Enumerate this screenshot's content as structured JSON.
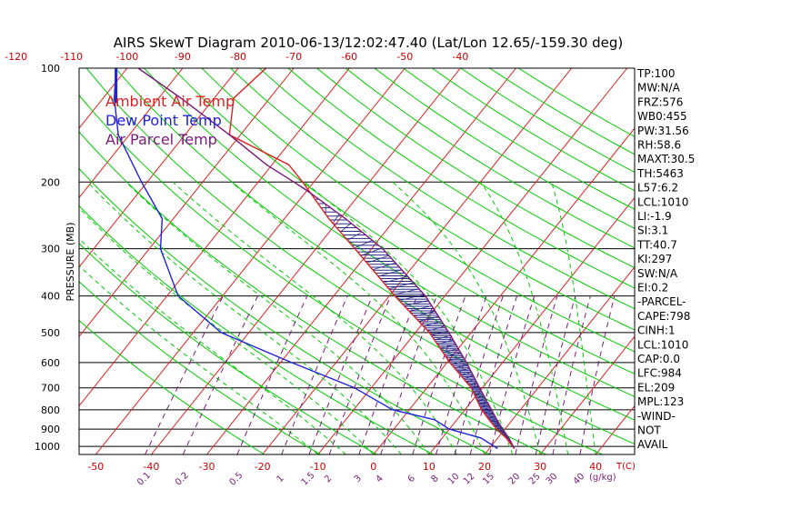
{
  "chart_data": {
    "type": "line",
    "title": "AIRS SkewT Diagram 2010-06-13/12:02:47.40 (Lat/Lon 12.65/-159.30 deg)",
    "ylabel": "PRESSURE (MB)",
    "x_units_label": "T(C)",
    "mixing_ratio_units_label": "(g/kg)",
    "pressure_levels": [
      1000,
      900,
      800,
      700,
      600,
      500,
      400,
      300,
      200,
      100
    ],
    "bottom_temp_ticks": [
      -50,
      -40,
      -30,
      -20,
      -10,
      0,
      10,
      20,
      30,
      40
    ],
    "top_temp_ticks": [
      -120,
      -110,
      -100,
      -90,
      -80,
      -70,
      -60,
      -50,
      -40
    ],
    "mixing_ratio_labels": [
      "0.1",
      "0.2",
      "0.5",
      "1",
      "1.5",
      "2",
      "3",
      "4",
      "6",
      "8",
      "10",
      "12",
      "15",
      "20",
      "25",
      "30",
      "40"
    ],
    "xlim": [
      -53,
      47
    ],
    "ylim": [
      1050,
      100
    ],
    "legend": [
      {
        "name": "Ambient Air Temp",
        "color": "#dd2222"
      },
      {
        "name": "Dew Point Temp",
        "color": "#2222dd"
      },
      {
        "name": "Air Parcel Temp",
        "color": "#7a1a7a"
      }
    ],
    "series": [
      {
        "name": "Ambient Air Temp",
        "color": "#dd2222",
        "p": [
          1013,
          950,
          900,
          850,
          800,
          700,
          600,
          500,
          400,
          300,
          250,
          200,
          180,
          150,
          120,
          100
        ],
        "t": [
          24.5,
          21.5,
          18.5,
          15.8,
          13.0,
          8.0,
          0.5,
          -7.5,
          -19.0,
          -33.0,
          -42.0,
          -52.0,
          -57.0,
          -72.0,
          -76.5,
          -75.0
        ]
      },
      {
        "name": "Dew Point Temp",
        "color": "#2222dd",
        "p": [
          1013,
          950,
          900,
          850,
          800,
          700,
          600,
          500,
          400,
          300,
          250,
          200,
          150,
          120,
          100
        ],
        "t": [
          21.5,
          17.0,
          10.0,
          6.0,
          -3.0,
          -13.0,
          -28.0,
          -45.0,
          -58.0,
          -68.0,
          -72.0,
          -81.0,
          -92.0,
          -98.0,
          -102.0
        ]
      },
      {
        "name": "Air Parcel Temp",
        "color": "#7a1a7a",
        "p": [
          1013,
          950,
          900,
          850,
          800,
          700,
          600,
          500,
          400,
          300,
          250,
          209,
          180,
          150,
          120,
          100
        ],
        "t": [
          24.5,
          22.0,
          19.6,
          17.2,
          14.8,
          9.5,
          3.5,
          -4.0,
          -13.5,
          -28.0,
          -39.0,
          -50.5,
          -61.0,
          -72.0,
          -86.0,
          -98.0
        ]
      }
    ]
  },
  "indices": [
    "TP:100",
    "MW:N/A",
    "FRZ:576",
    "WB0:455",
    "PW:31.56",
    "RH:58.6",
    "MAXT:30.5",
    "TH:5463",
    "L57:6.2",
    "LCL:1010",
    "LI:-1.9",
    "SI:3.1",
    "TT:40.7",
    "KI:297",
    "SW:N/A",
    "EI:0.2",
    "-PARCEL-",
    "CAPE:798",
    "CINH:1",
    "LCL:1010",
    "CAP:0.0",
    "LFC:984",
    "EL:209",
    "MPL:123",
    "-WIND-",
    "NOT",
    "AVAIL"
  ],
  "colors": {
    "isotherm": "#dd2222",
    "dry_adiabat": "#00cc00",
    "moist_adiabat": "#00cc00",
    "mixing_ratio": "#7a1a7a",
    "isobar": "#000000",
    "hatch": "#2a2a88",
    "tick_labels": "#cc0000"
  }
}
